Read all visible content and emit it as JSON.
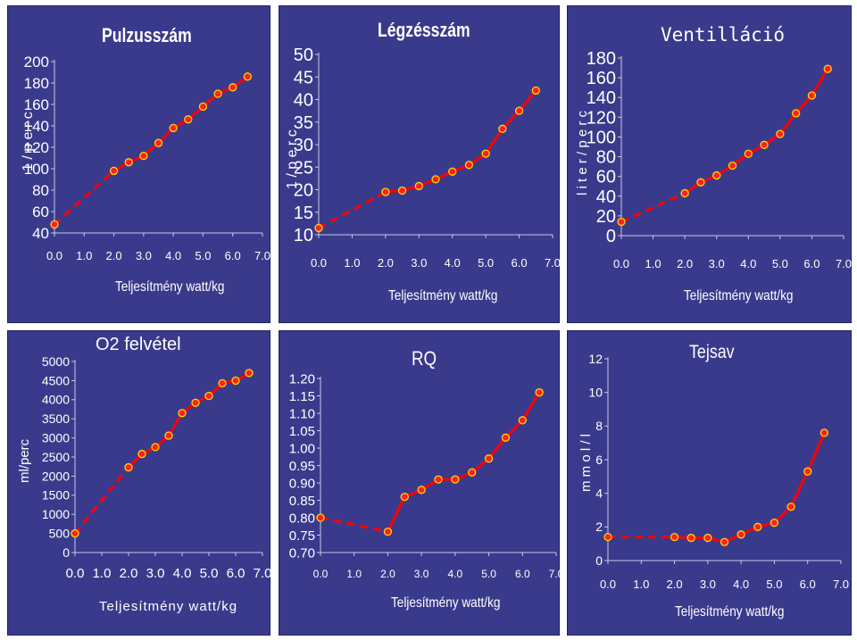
{
  "chart_data": [
    {
      "id": "pulzus",
      "type": "line",
      "title": "Pulzusszám",
      "xlabel": "Teljesítmény  watt/kg",
      "ylabel": "1 / p e r c",
      "xlim": [
        0,
        7
      ],
      "ylim": [
        40,
        200
      ],
      "xticks": [
        "0.0",
        "1.0",
        "2.0",
        "3.0",
        "4.0",
        "5.0",
        "6.0",
        "7.0"
      ],
      "yticks": [
        "40",
        "60",
        "80",
        "100",
        "120",
        "140",
        "160",
        "180",
        "200"
      ],
      "series": [
        {
          "x": [
            0.0,
            2.0,
            2.5,
            3.0,
            3.5,
            4.0,
            4.5,
            5.0,
            5.5,
            6.0,
            6.5
          ],
          "y": [
            48,
            98,
            106,
            112,
            124,
            138,
            146,
            158,
            170,
            176,
            186
          ]
        }
      ],
      "dashed_until_index": 1
    },
    {
      "id": "legzes",
      "type": "line",
      "title": "Légzésszám",
      "xlabel": "Teljesítmény  watt/kg",
      "ylabel": "1 / p e r c",
      "xlim": [
        0,
        7
      ],
      "ylim": [
        10,
        50
      ],
      "xticks": [
        "0.0",
        "1.0",
        "2.0",
        "3.0",
        "4.0",
        "5.0",
        "6.0",
        "7.0"
      ],
      "yticks": [
        "10",
        "15",
        "20",
        "25",
        "30",
        "35",
        "40",
        "45",
        "50"
      ],
      "series": [
        {
          "x": [
            0.0,
            2.0,
            2.5,
            3.0,
            3.5,
            4.0,
            4.5,
            5.0,
            5.5,
            6.0,
            6.5
          ],
          "y": [
            11.5,
            19.5,
            19.8,
            20.8,
            22.3,
            24,
            25.5,
            28,
            33.5,
            37.5,
            42
          ]
        }
      ],
      "dashed_until_index": 1
    },
    {
      "id": "ventillacio",
      "type": "line",
      "title": "Ventilláció",
      "xlabel": "Teljesítmény  watt/kg",
      "ylabel": "l i t e r / p e r c",
      "xlim": [
        0,
        7
      ],
      "ylim": [
        0,
        180
      ],
      "xticks": [
        "0.0",
        "1.0",
        "2.0",
        "3.0",
        "4.0",
        "5.0",
        "6.0",
        "7.0"
      ],
      "yticks": [
        "0",
        "20",
        "40",
        "60",
        "80",
        "100",
        "120",
        "140",
        "160",
        "180"
      ],
      "series": [
        {
          "x": [
            0.0,
            2.0,
            2.5,
            3.0,
            3.5,
            4.0,
            4.5,
            5.0,
            5.5,
            6.0,
            6.5
          ],
          "y": [
            14,
            43,
            54,
            61,
            71,
            83,
            92,
            103,
            124,
            142,
            169
          ]
        }
      ],
      "dashed_until_index": 1
    },
    {
      "id": "o2",
      "type": "line",
      "title": "O2 felvétel",
      "xlabel": "Teljesítmény  watt/kg",
      "ylabel": "ml/perc",
      "xlim": [
        0,
        7
      ],
      "ylim": [
        0,
        5000
      ],
      "xticks": [
        "0.0",
        "1.0",
        "2.0",
        "3.0",
        "4.0",
        "5.0",
        "6.0",
        "7.0"
      ],
      "yticks": [
        "0",
        "500",
        "1000",
        "1500",
        "2000",
        "2500",
        "3000",
        "3500",
        "4000",
        "4500",
        "5000"
      ],
      "series": [
        {
          "x": [
            0.0,
            2.0,
            2.5,
            3.0,
            3.5,
            4.0,
            4.5,
            5.0,
            5.5,
            6.0,
            6.5
          ],
          "y": [
            500,
            2230,
            2580,
            2760,
            3060,
            3650,
            3920,
            4100,
            4430,
            4500,
            4700
          ]
        }
      ],
      "dashed_until_index": 1
    },
    {
      "id": "rq",
      "type": "line",
      "title": "RQ",
      "xlabel": "Teljesítmény  watt/kg",
      "ylabel": "",
      "xlim": [
        0,
        7
      ],
      "ylim": [
        0.7,
        1.2
      ],
      "xticks": [
        "0.0",
        "1.0",
        "2.0",
        "3.0",
        "4.0",
        "5.0",
        "6.0",
        "7.0"
      ],
      "yticks": [
        "0.70",
        "0.75",
        "0.80",
        "0.85",
        "0.90",
        "0.95",
        "1.00",
        "1.05",
        "1.10",
        "1.15",
        "1.20"
      ],
      "series": [
        {
          "x": [
            0.0,
            2.0,
            2.5,
            3.0,
            3.5,
            4.0,
            4.5,
            5.0,
            5.5,
            6.0,
            6.5
          ],
          "y": [
            0.8,
            0.76,
            0.86,
            0.88,
            0.91,
            0.91,
            0.93,
            0.97,
            1.03,
            1.08,
            1.16
          ]
        }
      ],
      "dashed_until_index": 1
    },
    {
      "id": "tejsav",
      "type": "line",
      "title": "Tejsav",
      "xlabel": "Teljesítmény  watt/kg",
      "ylabel": "m m o l / l",
      "xlim": [
        0,
        7
      ],
      "ylim": [
        0,
        12
      ],
      "xticks": [
        "0.0",
        "1.0",
        "2.0",
        "3.0",
        "4.0",
        "5.0",
        "6.0",
        "7.0"
      ],
      "yticks": [
        "0",
        "2",
        "4",
        "6",
        "8",
        "10",
        "12"
      ],
      "series": [
        {
          "x": [
            0.0,
            2.0,
            2.5,
            3.0,
            3.5,
            4.0,
            4.5,
            5.0,
            5.5,
            6.0,
            6.5
          ],
          "y": [
            1.4,
            1.4,
            1.35,
            1.35,
            1.1,
            1.55,
            2.0,
            2.25,
            3.2,
            5.3,
            7.6
          ]
        }
      ],
      "dashed_until_index": 1
    }
  ],
  "colors": {
    "panel_bg": "#3a3a8c",
    "line": "#ff0000",
    "marker_stroke": "#ffd700",
    "marker_fill": "#ff2020",
    "text": "#ffffff"
  }
}
